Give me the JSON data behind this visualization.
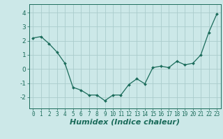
{
  "x": [
    0,
    1,
    2,
    3,
    4,
    5,
    6,
    7,
    8,
    9,
    10,
    11,
    12,
    13,
    14,
    15,
    16,
    17,
    18,
    19,
    20,
    21,
    22,
    23
  ],
  "y": [
    2.2,
    2.3,
    1.8,
    1.2,
    0.4,
    -1.3,
    -1.5,
    -1.85,
    -1.85,
    -2.25,
    -1.85,
    -1.85,
    -1.1,
    -0.7,
    -1.05,
    0.1,
    0.2,
    0.1,
    0.55,
    0.3,
    0.4,
    1.0,
    2.6,
    3.9
  ],
  "line_color": "#1a6b5a",
  "marker": "D",
  "marker_size": 2.0,
  "bg_color": "#cce8e8",
  "grid_color": "#aacccc",
  "xlabel": "Humidex (Indice chaleur)",
  "xlabel_style": "italic",
  "xlabel_fontsize": 8,
  "xlim": [
    -0.5,
    23.5
  ],
  "ylim": [
    -2.8,
    4.6
  ],
  "yticks": [
    -2,
    -1,
    0,
    1,
    2,
    3,
    4
  ],
  "xtick_fontsize": 5.5,
  "ytick_fontsize": 6.5,
  "tick_color": "#1a6b5a",
  "linewidth": 0.9
}
